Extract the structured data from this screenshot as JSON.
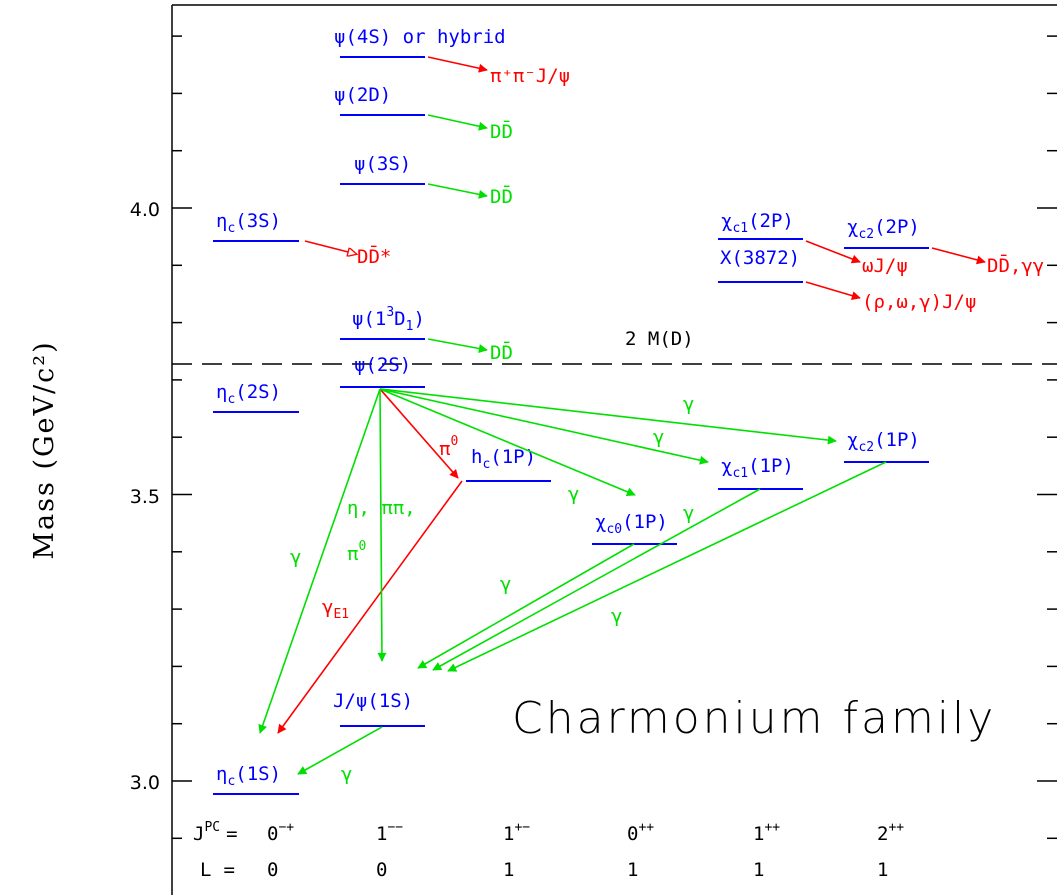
{
  "title": "Charmonium family",
  "ylabel": "Mass (GeV/c²)",
  "ylim": [
    2.875,
    4.36
  ],
  "yticks": [
    {
      "value": 3.0,
      "label": "3.0"
    },
    {
      "value": 3.5,
      "label": "3.5"
    },
    {
      "value": 4.0,
      "label": "4.0"
    }
  ],
  "threshold": {
    "label": "2 M(D)",
    "mass": 3.73
  },
  "columns": [
    {
      "jpc_base": "0",
      "jpc_sup": "−+",
      "L": "0"
    },
    {
      "jpc_base": "1",
      "jpc_sup": "−−",
      "L": "0"
    },
    {
      "jpc_base": "1",
      "jpc_sup": "+−",
      "L": "1"
    },
    {
      "jpc_base": "0",
      "jpc_sup": "++",
      "L": "1"
    },
    {
      "jpc_base": "1",
      "jpc_sup": "++",
      "L": "1"
    },
    {
      "jpc_base": "2",
      "jpc_sup": "++",
      "L": "1"
    }
  ],
  "row_labels": {
    "jpc": "J",
    "jpc_sup": "PC",
    "eq": "=",
    "L": "L"
  },
  "states": {
    "etac1S": {
      "sym": "η",
      "sub": "c",
      "rest": "(1S)",
      "mass": 2.98
    },
    "etac2S": {
      "sym": "η",
      "sub": "c",
      "rest": "(2S)",
      "mass": 3.64
    },
    "etac3S": {
      "sym": "η",
      "sub": "c",
      "rest": "(3S)",
      "mass": 3.94
    },
    "jpsi": {
      "text": "J/ψ(1S)",
      "mass": 3.097
    },
    "psi2S": {
      "text": "ψ(2S)",
      "mass": 3.686
    },
    "psi1D": {
      "pre": "ψ(1",
      "sup": "3",
      "mid": "D",
      "sub": "1",
      "post": ")",
      "mass": 3.77
    },
    "psi3S": {
      "text": "ψ(3S)",
      "mass": 4.04
    },
    "psi2D": {
      "text": "ψ(2D)",
      "mass": 4.16
    },
    "psi4S": {
      "text": "ψ(4S) or hybrid",
      "mass": 4.26
    },
    "hc": {
      "text": "h",
      "sub": "c",
      "rest": "(1P)",
      "mass": 3.525
    },
    "chic0": {
      "sym": "χ",
      "sub": "c0",
      "rest": "(1P)",
      "mass": 3.415
    },
    "chic1": {
      "sym": "χ",
      "sub": "c1",
      "rest": "(1P)",
      "mass": 3.511
    },
    "chic2": {
      "sym": "χ",
      "sub": "c2",
      "rest": "(1P)",
      "mass": 3.556
    },
    "chic1_2P": {
      "sym": "χ",
      "sub": "c1",
      "rest": "(2P)"
    },
    "x3872": {
      "text": "X(3872)",
      "mass": 3.872
    },
    "chic2_2P": {
      "sym": "χ",
      "sub": "c2",
      "rest": "(2P)",
      "mass": 3.93
    }
  },
  "decays": {
    "psi4S": "π⁺π⁻J/ψ",
    "psi2D": "DD̄",
    "psi3S": "DD̄",
    "psi1D": "DD̄",
    "etac3S": "DD̄*",
    "x3872_a": "ωJ/ψ",
    "x3872_b": "(ρ,ω,γ)J/ψ",
    "chic2_2P": "DD̄,γγ"
  },
  "transition_labels": {
    "gamma": "γ",
    "eta_pipi": "η, ππ,",
    "pi0": "π",
    "pi0_sup": "0",
    "gammaE1": "γ",
    "gammaE1_sub": "E1"
  },
  "colors": {
    "level": "#0000ff",
    "allowed": "#00e000",
    "forbidden": "#ff0000",
    "axis": "#000000"
  }
}
